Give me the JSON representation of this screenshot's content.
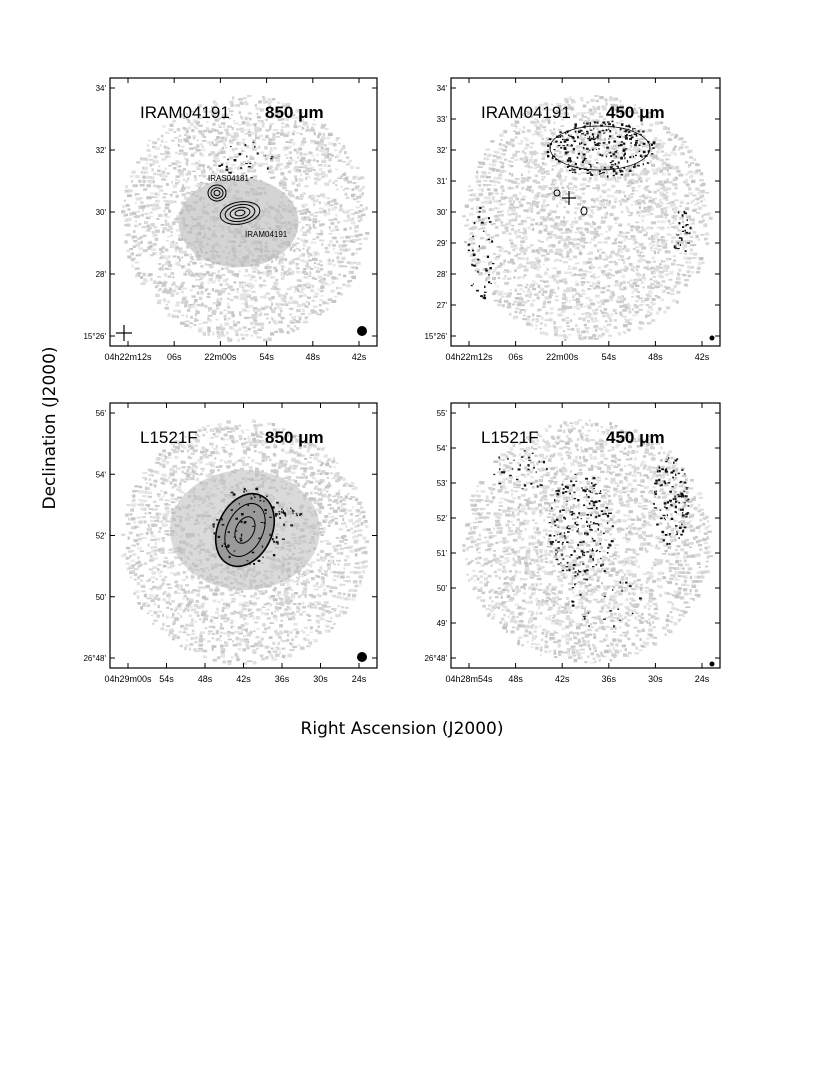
{
  "figure": {
    "xlabel": "Right Ascension (J2000)",
    "ylabel": "Declination (J2000)"
  },
  "panels": [
    {
      "source": "IRAM04191",
      "wavelength": "850 μm",
      "ra_ticks": [
        "04h22m12s",
        "06s",
        "22m00s",
        "54s",
        "48s",
        "42s"
      ],
      "dec_ticks": [
        "15°26'",
        "28'",
        "30'",
        "32'",
        "34'"
      ],
      "annotations": [
        "IRAS04181",
        "IRAM04191"
      ],
      "contours": true
    },
    {
      "source": "IRAM04191",
      "wavelength": "450 μm",
      "ra_ticks": [
        "04h22m12s",
        "06s",
        "22m00s",
        "54s",
        "48s",
        "42s"
      ],
      "dec_ticks": [
        "15°26'",
        "27'",
        "28'",
        "29'",
        "30'",
        "31'",
        "32'",
        "33'",
        "34'"
      ],
      "annotations": [],
      "contours": true
    },
    {
      "source": "L1521F",
      "wavelength": "850 μm",
      "ra_ticks": [
        "04h29m00s",
        "54s",
        "48s",
        "42s",
        "36s",
        "30s",
        "24s"
      ],
      "dec_ticks": [
        "26°48'",
        "50'",
        "52'",
        "54'",
        "56'"
      ],
      "annotations": [],
      "contours": true
    },
    {
      "source": "L1521F",
      "wavelength": "450 μm",
      "ra_ticks": [
        "04h28m54s",
        "48s",
        "42s",
        "36s",
        "30s",
        "24s"
      ],
      "dec_ticks": [
        "26°48'",
        "49'",
        "50'",
        "51'",
        "52'",
        "53'",
        "54'",
        "55'"
      ],
      "annotations": [],
      "contours": true
    }
  ]
}
